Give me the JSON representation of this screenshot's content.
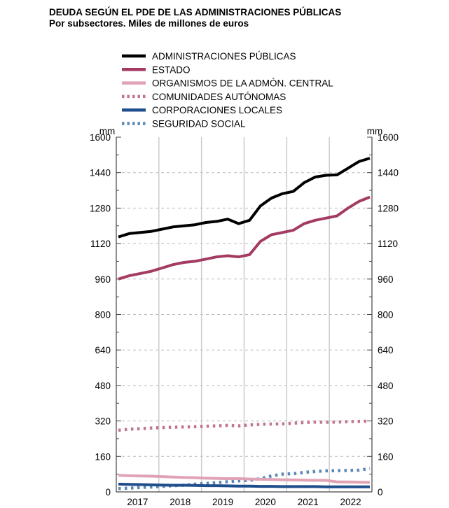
{
  "chart_data": {
    "type": "line",
    "title": "DEUDA SEGÚN EL PDE DE LAS ADMINISTRACIONES PÚBLICAS",
    "subtitle": "Por subsectores. Miles de millones de euros",
    "ylabel_left": "mm",
    "ylabel_right": "mm",
    "ylim": [
      0,
      1600
    ],
    "yticks": [
      0,
      160,
      320,
      480,
      640,
      800,
      960,
      1120,
      1280,
      1440,
      1600
    ],
    "x_tick_labels": [
      "2017",
      "2018",
      "2019",
      "2020",
      "2021",
      "2022"
    ],
    "x": [
      "2017-Q1",
      "2017-Q2",
      "2017-Q3",
      "2017-Q4",
      "2018-Q1",
      "2018-Q2",
      "2018-Q3",
      "2018-Q4",
      "2019-Q1",
      "2019-Q2",
      "2019-Q3",
      "2019-Q4",
      "2020-Q1",
      "2020-Q2",
      "2020-Q3",
      "2020-Q4",
      "2021-Q1",
      "2021-Q2",
      "2021-Q3",
      "2021-Q4",
      "2022-Q1",
      "2022-Q2",
      "2022-Q3",
      "2022-Q4"
    ],
    "grid": true,
    "legend_position": "top",
    "series": [
      {
        "name": "ADMINISTRACIONES PÚBLICAS",
        "color": "#000000",
        "style": "solid",
        "values": [
          1150,
          1165,
          1170,
          1175,
          1185,
          1195,
          1200,
          1205,
          1215,
          1220,
          1230,
          1210,
          1225,
          1290,
          1325,
          1345,
          1355,
          1395,
          1420,
          1428,
          1430,
          1460,
          1490,
          1505
        ]
      },
      {
        "name": "ESTADO",
        "color": "#a33b62",
        "style": "solid",
        "values": [
          960,
          975,
          985,
          995,
          1010,
          1025,
          1035,
          1040,
          1050,
          1060,
          1065,
          1060,
          1070,
          1130,
          1160,
          1170,
          1180,
          1210,
          1225,
          1235,
          1245,
          1280,
          1310,
          1330
        ]
      },
      {
        "name": "ORGANISMOS DE LA ADMÓN. CENTRAL",
        "color": "#e0a3b5",
        "style": "solid",
        "values": [
          75,
          73,
          72,
          71,
          69,
          67,
          65,
          64,
          62,
          61,
          60,
          60,
          58,
          57,
          56,
          55,
          54,
          53,
          52,
          52,
          45,
          45,
          44,
          43
        ]
      },
      {
        "name": "COMUNIDADES AUTÓNOMAS",
        "color": "#c07590",
        "style": "dotted",
        "values": [
          278,
          283,
          285,
          288,
          290,
          292,
          293,
          294,
          296,
          298,
          300,
          298,
          302,
          305,
          306,
          307,
          310,
          313,
          315,
          314,
          315,
          317,
          318,
          319
        ]
      },
      {
        "name": "CORPORACIONES LOCALES",
        "color": "#1f4e8c",
        "style": "solid",
        "values": [
          35,
          34,
          33,
          32,
          31,
          30,
          30,
          29,
          28,
          28,
          27,
          26,
          26,
          25,
          25,
          24,
          24,
          24,
          24,
          23,
          23,
          23,
          23,
          23
        ]
      },
      {
        "name": "SEGURIDAD SOCIAL",
        "color": "#5b87b5",
        "style": "dotted",
        "values": [
          15,
          17,
          20,
          22,
          25,
          28,
          30,
          35,
          38,
          42,
          46,
          50,
          52,
          60,
          72,
          80,
          82,
          88,
          92,
          95,
          96,
          97,
          98,
          105
        ]
      }
    ]
  }
}
